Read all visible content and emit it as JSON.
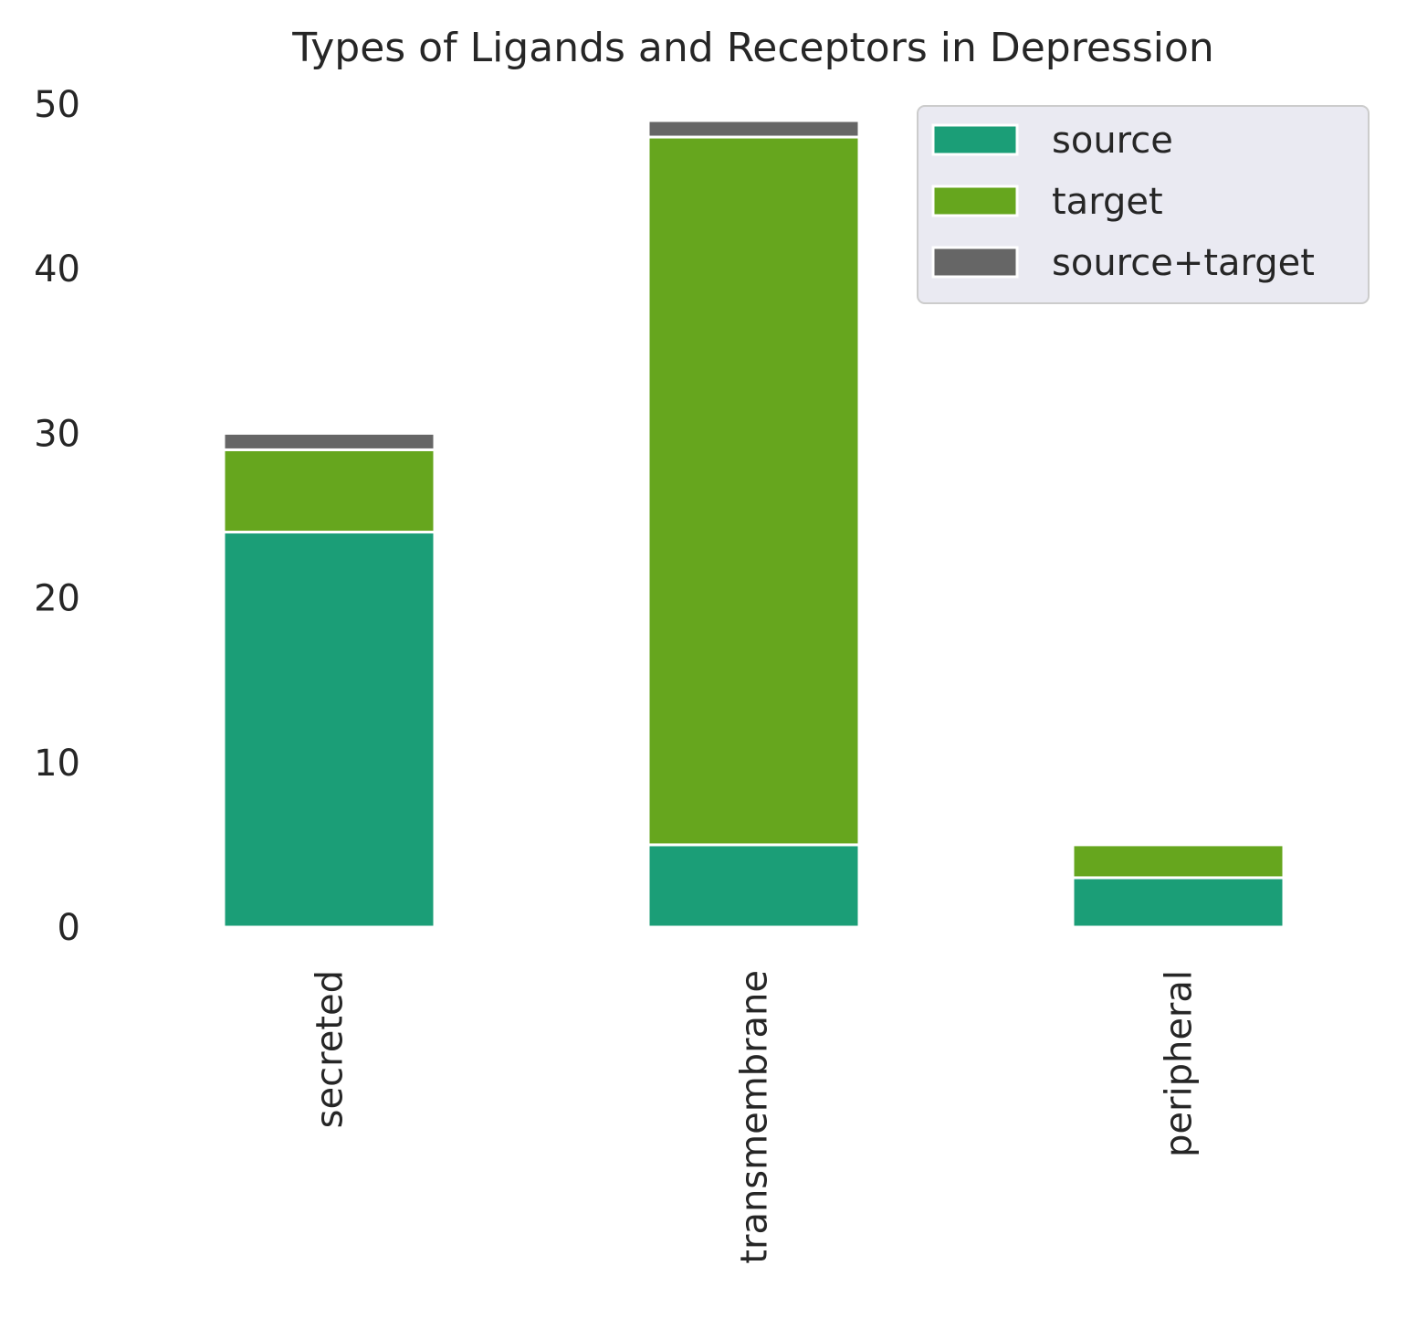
{
  "chart_data": {
    "type": "bar",
    "stacked": true,
    "title": "Types of Ligands and Receptors in Depression",
    "xlabel": "",
    "ylabel": "",
    "categories": [
      "secreted",
      "transmembrane",
      "peripheral"
    ],
    "series": [
      {
        "name": "source",
        "values": [
          24,
          5,
          3
        ],
        "color": "#1b9e77"
      },
      {
        "name": "target",
        "values": [
          5,
          43,
          2
        ],
        "color": "#66a61e"
      },
      {
        "name": "source+target",
        "values": [
          1,
          1,
          0
        ],
        "color": "#666666"
      }
    ],
    "ylim": [
      0,
      50
    ],
    "yticks": [
      0,
      10,
      20,
      30,
      40,
      50
    ],
    "xtick_rotation": 90,
    "grid": false,
    "legend": {
      "placement": "top-right",
      "background": "#eaeaf2"
    }
  }
}
